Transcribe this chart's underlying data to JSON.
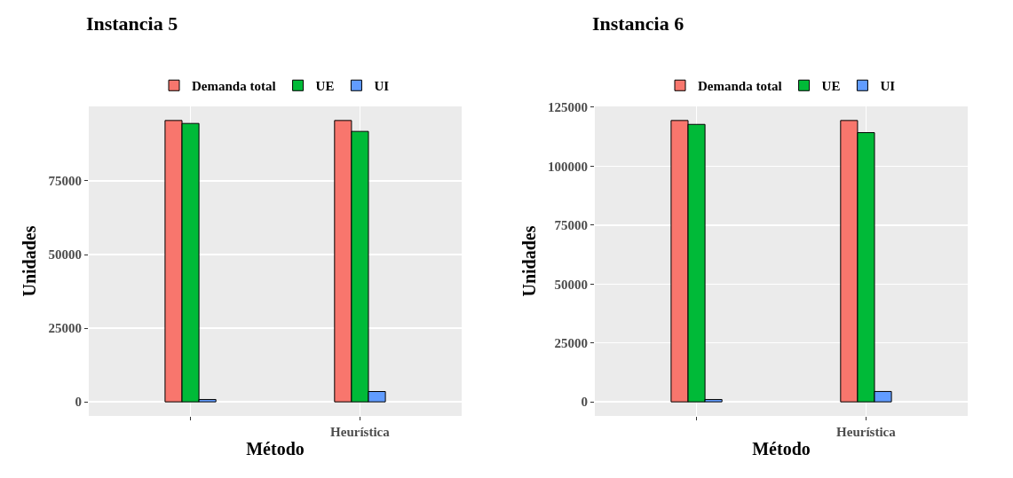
{
  "chart_data": [
    {
      "type": "bar",
      "title": "Instancia 5",
      "xlabel": "Método",
      "ylabel": "Unidades",
      "categories": [
        null,
        "Heurística"
      ],
      "series": [
        {
          "name": "Demanda total",
          "color": "#f8766d",
          "values": [
            95500,
            95500
          ]
        },
        {
          "name": "UE",
          "color": "#00ba38",
          "values": [
            94500,
            91800
          ]
        },
        {
          "name": "UI",
          "color": "#619cff",
          "values": [
            800,
            3500
          ]
        }
      ],
      "ylim": [
        -4775,
        100275
      ],
      "yticks": [
        0,
        25000,
        50000,
        75000
      ],
      "grid": true,
      "legend": "top"
    },
    {
      "type": "bar",
      "title": "Instancia 6",
      "xlabel": "Método",
      "ylabel": "Unidades",
      "categories": [
        null,
        "Heurística"
      ],
      "series": [
        {
          "name": "Demanda total",
          "color": "#f8766d",
          "values": [
            119400,
            119400
          ]
        },
        {
          "name": "UE",
          "color": "#00ba38",
          "values": [
            117750,
            114250
          ]
        },
        {
          "name": "UI",
          "color": "#619cff",
          "values": [
            1000,
            4400
          ]
        }
      ],
      "ylim": [
        -5970,
        125370
      ],
      "yticks": [
        0,
        25000,
        50000,
        75000,
        100000,
        125000
      ],
      "grid": true,
      "legend": "top"
    }
  ]
}
